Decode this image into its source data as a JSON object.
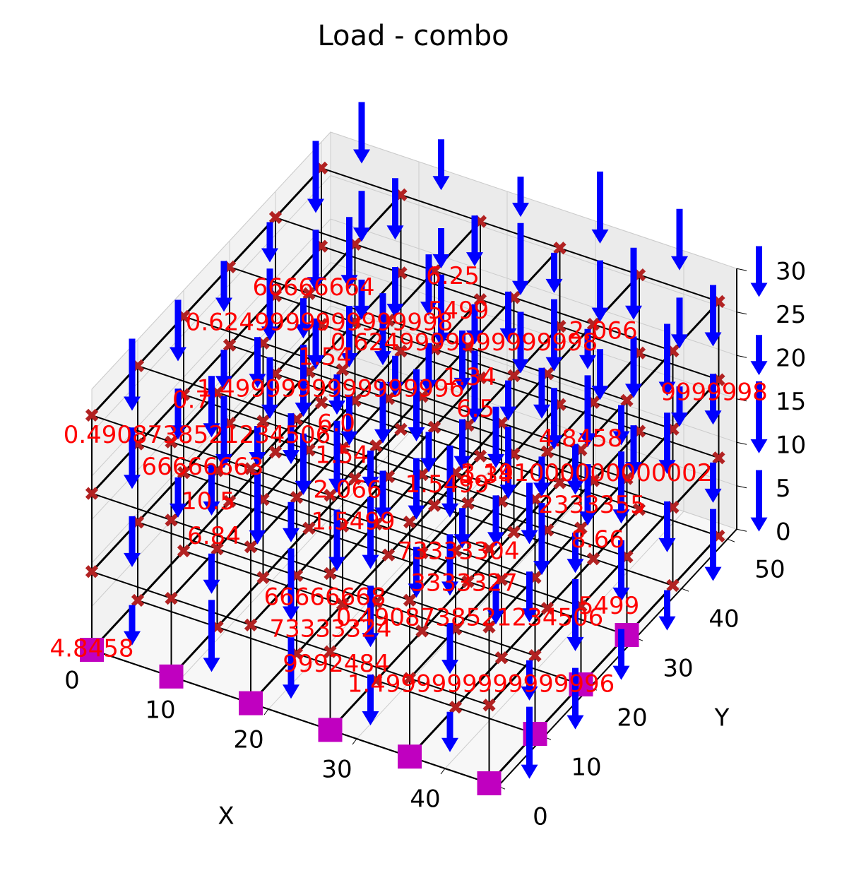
{
  "chart_data": {
    "type": "quiver3d",
    "title": "Load - combo",
    "xlabel": "X",
    "ylabel": "Y",
    "xlim": [
      0,
      46
    ],
    "ylim": [
      0,
      52
    ],
    "zlim": [
      0,
      30
    ],
    "xticks": [
      0,
      10,
      20,
      30,
      40
    ],
    "yticks": [
      0,
      10,
      20,
      30,
      40,
      50
    ],
    "zticks": [
      0,
      5,
      10,
      15,
      20,
      25,
      30
    ],
    "arrow_color": "#0000ff",
    "label_color": "#ff0000",
    "node_color": "#b22222",
    "support_color": "#c000c0",
    "annotations": [
      "4.8458",
      "2.066",
      "2.066",
      "6.84",
      "1.34",
      "1.34",
      "6.0",
      "1.5499",
      "5499",
      "5499",
      "6.5",
      "1.54",
      "1.54",
      "8.66",
      "10.5",
      "0.6249999999999998",
      "1.4999999999999996",
      "1.4999999999999996",
      "3.191000000000002",
      "0.4908738521234506",
      "6.25",
      "0.4908738521234506",
      "0.6249999999999998",
      "9992484",
      "2333355",
      "66666663",
      "73333304",
      "9999998",
      "66666668",
      "4.8458",
      "0.7",
      "1.5499",
      "3333327",
      "66666664",
      "73333324"
    ]
  }
}
